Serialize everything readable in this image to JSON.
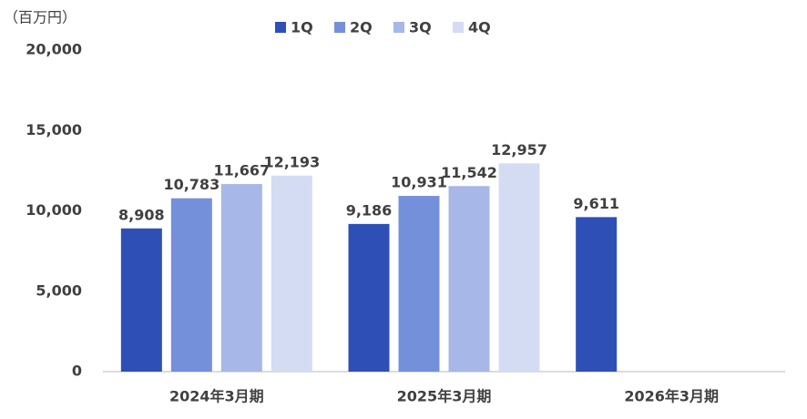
{
  "chart_data": {
    "type": "bar",
    "y_axis_label": "（百万円）",
    "categories": [
      "2024年3月期",
      "2025年3月期",
      "2026年3月期"
    ],
    "series": [
      {
        "name": "1Q",
        "color": "#2e4fb5",
        "values": [
          8908,
          9186,
          9611
        ],
        "value_labels": [
          "8,908",
          "9,186",
          "9,611"
        ]
      },
      {
        "name": "2Q",
        "color": "#7590db",
        "values": [
          10783,
          10931,
          null
        ],
        "value_labels": [
          "10,783",
          "10,931",
          null
        ]
      },
      {
        "name": "3Q",
        "color": "#a6b7e8",
        "values": [
          11667,
          11542,
          null
        ],
        "value_labels": [
          "11,667",
          "11,542",
          null
        ]
      },
      {
        "name": "4Q",
        "color": "#d3dcf3",
        "values": [
          12193,
          12957,
          null
        ],
        "value_labels": [
          "12,193",
          "12,957",
          null
        ]
      }
    ],
    "ylim": [
      0,
      20000
    ],
    "yticks": [
      0,
      {
        "value": 5000,
        "label": "5,000"
      },
      {
        "value": 10000,
        "label": "10,000"
      },
      {
        "value": 15000,
        "label": "15,000"
      },
      {
        "value": 20000,
        "label": "20,000"
      }
    ],
    "grid": false,
    "legend": "top"
  }
}
